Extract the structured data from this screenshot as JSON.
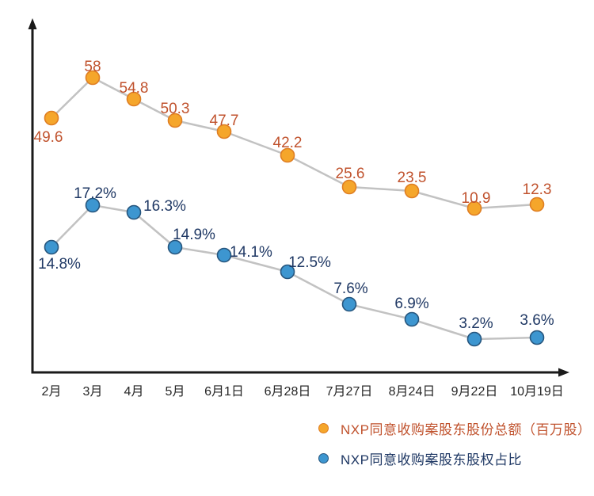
{
  "chart_data": {
    "type": "line",
    "title": "",
    "categories": [
      "2月",
      "3月",
      "4月",
      "5月",
      "6月1日",
      "6月28日",
      "7月27日",
      "8月24日",
      "9月22日",
      "10月19日"
    ],
    "series": [
      {
        "name": "NXP同意收购案股东股份总额（百万股）",
        "values": [
          49.6,
          58,
          54.8,
          50.3,
          47.7,
          42.2,
          25.6,
          23.5,
          10.9,
          12.3
        ],
        "labels": [
          "49.6",
          "58",
          "54.8",
          "50.3",
          "47.7",
          "42.2",
          "25.6",
          "23.5",
          "10.9",
          "12.3"
        ],
        "marker_color": "#F5A62B",
        "marker_edge_color": "#DF7E23",
        "label_color": "#C0522D"
      },
      {
        "name": "NXP同意收购案股东股权占比",
        "values": [
          14.8,
          17.2,
          16.3,
          14.9,
          14.1,
          12.5,
          7.6,
          6.9,
          3.2,
          3.6
        ],
        "labels": [
          "14.8%",
          "17.2%",
          "16.3%",
          "14.9%",
          "14.1%",
          "12.5%",
          "7.6%",
          "6.9%",
          "3.2%",
          "3.6%"
        ],
        "marker_color": "#3D96D0",
        "marker_edge_color": "#27567E",
        "label_color": "#1F3864"
      }
    ],
    "connector_line_color": "#C2C2C2",
    "axis_color": "#1A1A1A",
    "tick_label_color": "#262626",
    "grid": false,
    "y_axis_tick_labels": "none",
    "legend_position": "bottom-right"
  }
}
